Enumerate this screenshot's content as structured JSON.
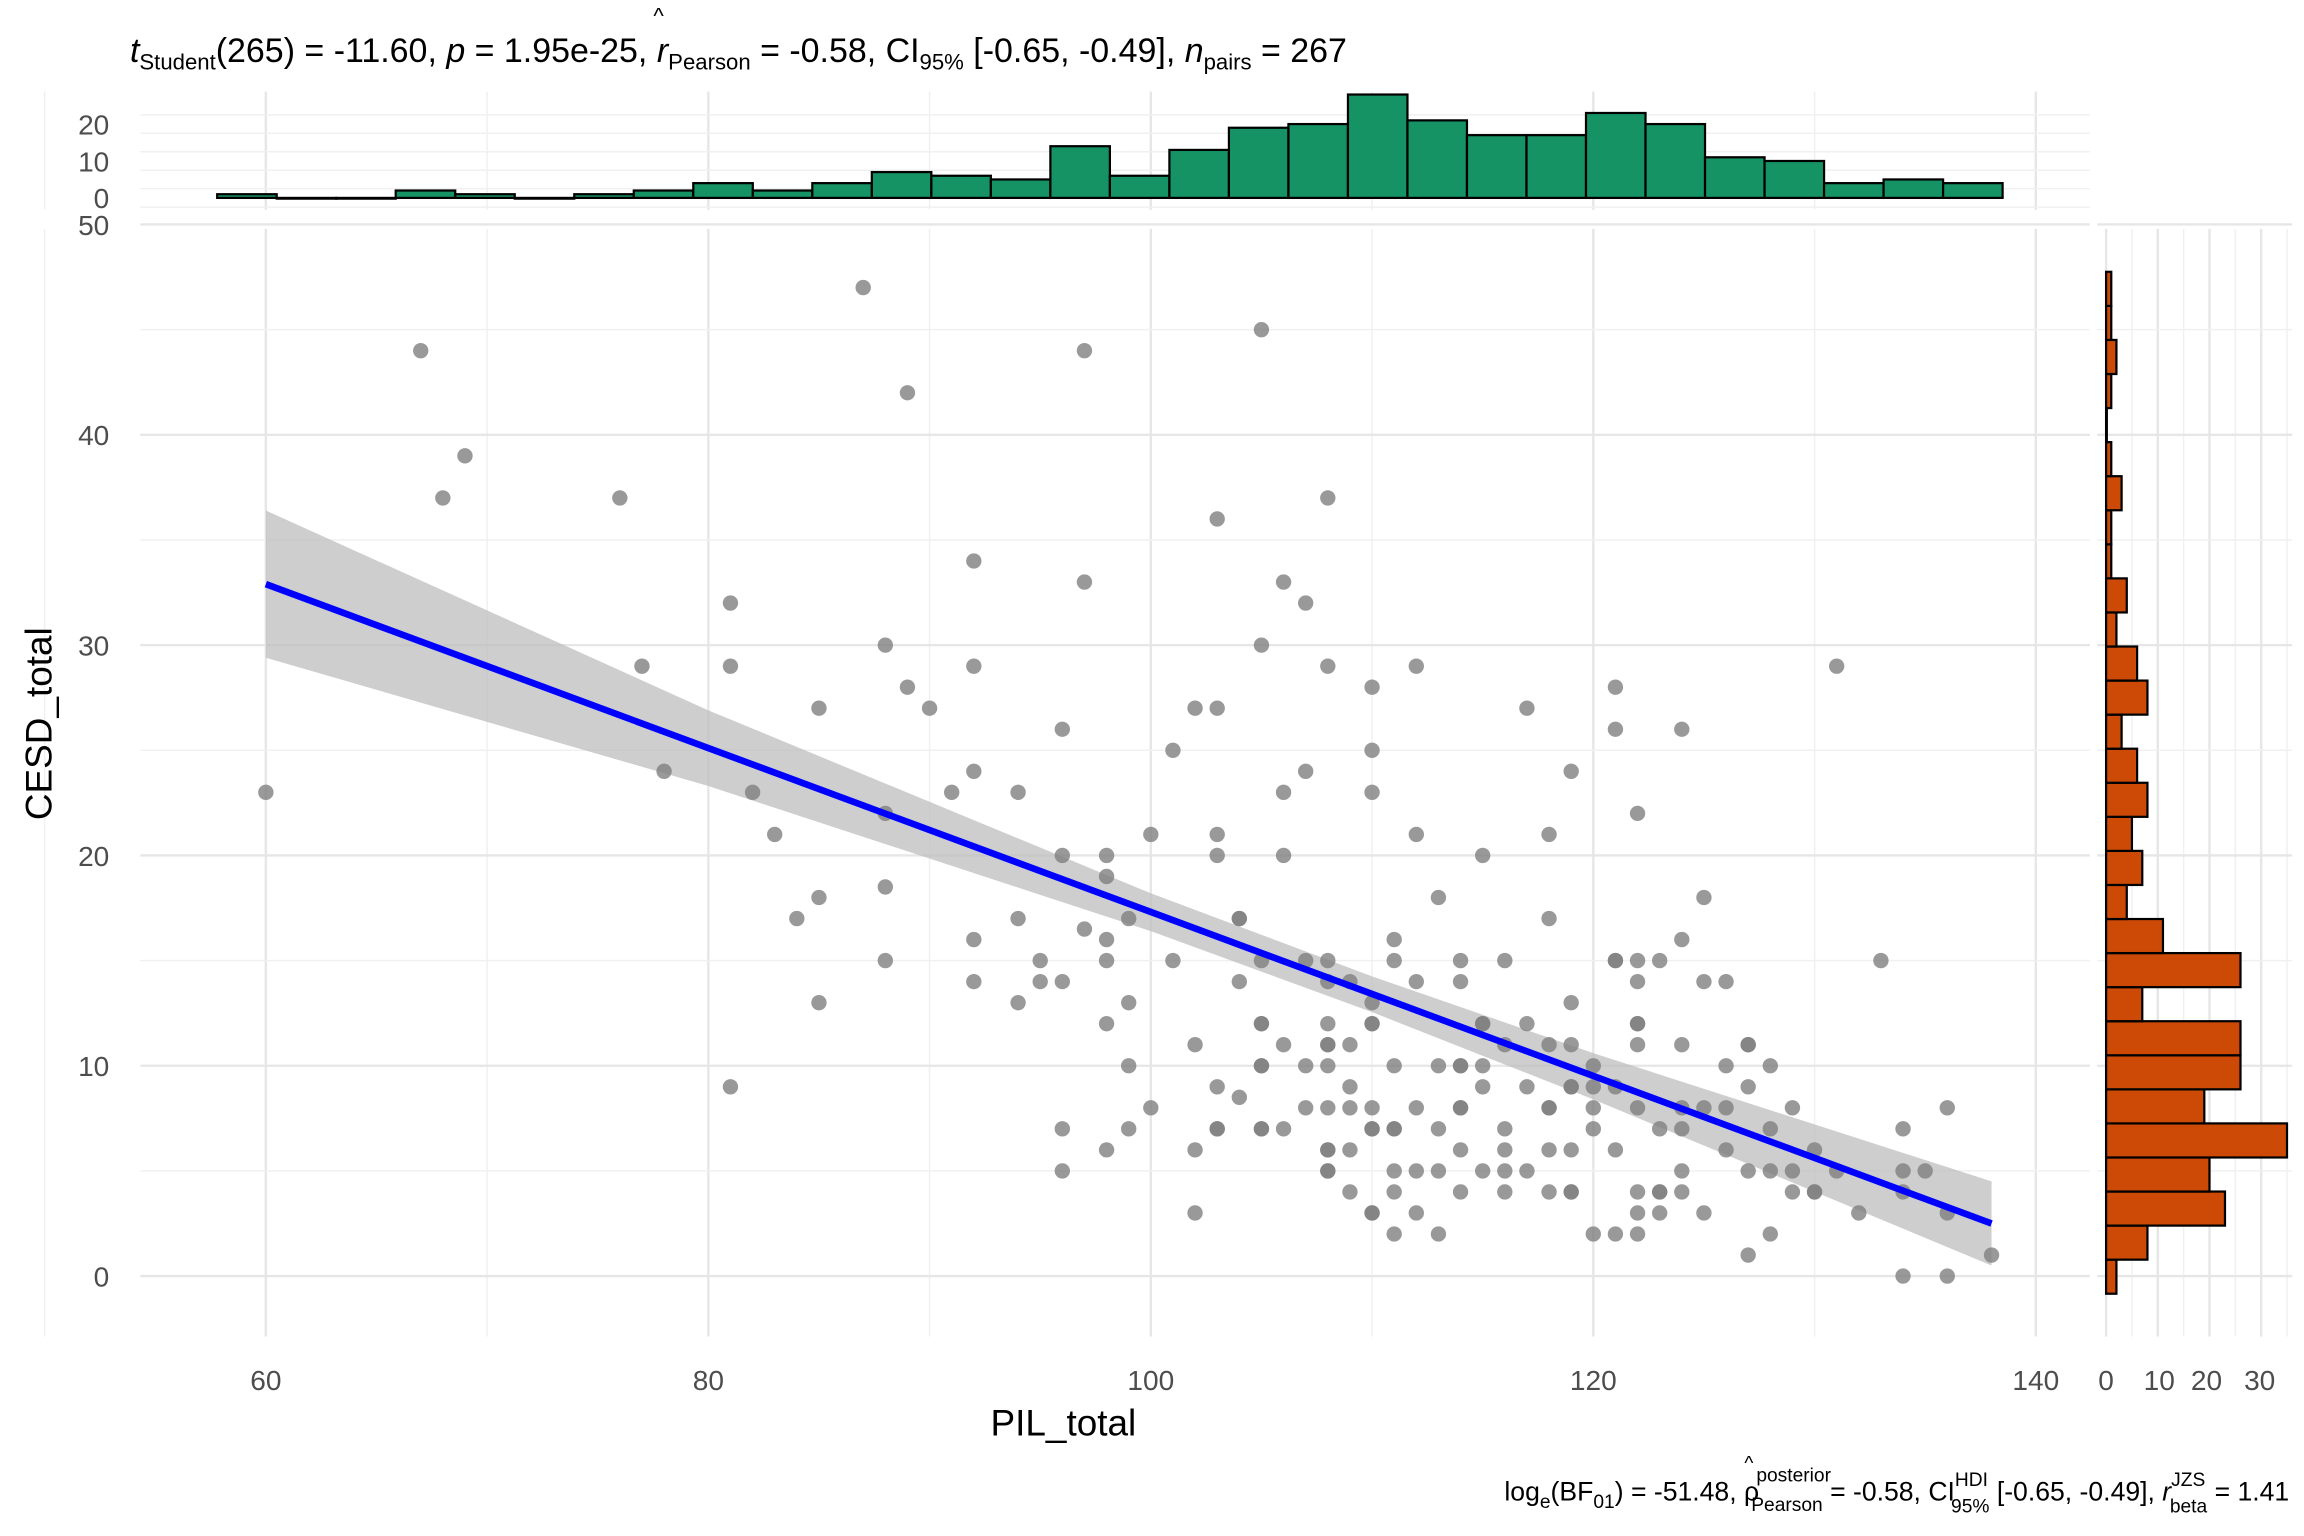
{
  "title": {
    "t": "t",
    "t_sub": "Student",
    "part1": "(265) = -11.60, ",
    "p": "p",
    "part2": " = 1.95e-25, ",
    "r": "r",
    "r_hat": "^",
    "r_sub": "Pearson",
    "part3": " = -0.58, CI",
    "ci_sub": "95%",
    "part4": " [-0.65, -0.49], ",
    "n": "n",
    "n_sub": "pairs",
    "part5": " = 267"
  },
  "caption": {
    "log": "log",
    "log_sub": "e",
    "bf_open": "(BF",
    "bf_sub": "01",
    "part1": ") = -51.48, ",
    "rho": "ρ",
    "rho_hat": "^",
    "rho_sup": "posterior",
    "rho_sub": "Pearson",
    "part2": " = -0.58, CI",
    "ci_sup": "HDI",
    "ci_sub": "95%",
    "part3": " [-0.65, -0.49], ",
    "r": "r",
    "r_sup": "JZS",
    "r_sub": "beta",
    "part4": " = 1.41"
  },
  "colors": {
    "points": "#7f7f7f",
    "line": "#0000ff",
    "band": "#bebebe",
    "top_hist": "#159364",
    "right_hist": "#cc4a06"
  },
  "chart_data": {
    "type": "scatter",
    "xlabel": "PIL_total",
    "ylabel": "CESD_total",
    "xlim": [
      55,
      140
    ],
    "ylim": [
      -3,
      50
    ],
    "xticks": [
      "60",
      "80",
      "100",
      "120",
      "140"
    ],
    "yticks": [
      "0",
      "10",
      "20",
      "30",
      "40",
      "50"
    ],
    "grid": true,
    "points": [
      [
        60,
        23
      ],
      [
        67,
        44
      ],
      [
        68,
        37
      ],
      [
        69,
        39
      ],
      [
        76,
        37
      ],
      [
        77,
        29
      ],
      [
        78,
        24
      ],
      [
        81,
        32
      ],
      [
        81,
        29
      ],
      [
        81,
        9
      ],
      [
        82,
        23
      ],
      [
        83,
        21
      ],
      [
        84,
        17
      ],
      [
        85,
        27
      ],
      [
        85,
        18
      ],
      [
        85,
        13
      ],
      [
        87,
        47
      ],
      [
        88,
        30
      ],
      [
        88,
        22
      ],
      [
        88,
        18.5
      ],
      [
        88,
        15
      ],
      [
        89,
        42
      ],
      [
        89,
        28
      ],
      [
        90,
        27
      ],
      [
        91,
        23
      ],
      [
        92,
        34
      ],
      [
        92,
        29
      ],
      [
        92,
        24
      ],
      [
        92,
        16
      ],
      [
        92,
        14
      ],
      [
        94,
        23
      ],
      [
        94,
        17
      ],
      [
        94,
        13
      ],
      [
        95,
        15
      ],
      [
        95,
        14
      ],
      [
        96,
        26
      ],
      [
        96,
        20
      ],
      [
        96,
        14
      ],
      [
        96,
        7
      ],
      [
        96,
        5
      ],
      [
        97,
        44
      ],
      [
        97,
        33
      ],
      [
        97,
        16.5
      ],
      [
        98,
        20
      ],
      [
        98,
        19
      ],
      [
        98,
        16
      ],
      [
        98,
        15
      ],
      [
        98,
        12
      ],
      [
        98,
        6
      ],
      [
        99,
        17
      ],
      [
        99,
        13
      ],
      [
        99,
        10
      ],
      [
        99,
        7
      ],
      [
        100,
        21
      ],
      [
        100,
        8
      ],
      [
        101,
        25
      ],
      [
        101,
        15
      ],
      [
        102,
        27
      ],
      [
        102,
        11
      ],
      [
        102,
        6
      ],
      [
        102,
        3
      ],
      [
        103,
        36
      ],
      [
        103,
        27
      ],
      [
        103,
        21
      ],
      [
        103,
        20
      ],
      [
        103,
        9
      ],
      [
        103,
        7
      ],
      [
        103,
        7
      ],
      [
        104,
        17
      ],
      [
        104,
        17
      ],
      [
        104,
        14
      ],
      [
        104,
        8.5
      ],
      [
        105,
        45
      ],
      [
        105,
        30
      ],
      [
        105,
        15
      ],
      [
        105,
        12
      ],
      [
        105,
        12
      ],
      [
        105,
        10
      ],
      [
        105,
        10
      ],
      [
        105,
        7
      ],
      [
        105,
        7
      ],
      [
        106,
        33
      ],
      [
        106,
        23
      ],
      [
        106,
        20
      ],
      [
        106,
        11
      ],
      [
        106,
        7
      ],
      [
        107,
        32
      ],
      [
        107,
        24
      ],
      [
        107,
        15
      ],
      [
        107,
        10
      ],
      [
        107,
        8
      ],
      [
        108,
        37
      ],
      [
        108,
        29
      ],
      [
        108,
        15
      ],
      [
        108,
        14
      ],
      [
        108,
        12
      ],
      [
        108,
        11
      ],
      [
        108,
        11
      ],
      [
        108,
        10
      ],
      [
        108,
        8
      ],
      [
        108,
        6
      ],
      [
        108,
        6
      ],
      [
        108,
        5
      ],
      [
        108,
        5
      ],
      [
        109,
        14
      ],
      [
        109,
        11
      ],
      [
        109,
        9
      ],
      [
        109,
        8
      ],
      [
        109,
        6
      ],
      [
        109,
        4
      ],
      [
        110,
        28
      ],
      [
        110,
        25
      ],
      [
        110,
        23
      ],
      [
        110,
        13
      ],
      [
        110,
        12
      ],
      [
        110,
        12
      ],
      [
        110,
        8
      ],
      [
        110,
        7
      ],
      [
        110,
        7
      ],
      [
        110,
        3
      ],
      [
        110,
        3
      ],
      [
        111,
        16
      ],
      [
        111,
        15
      ],
      [
        111,
        10
      ],
      [
        111,
        7
      ],
      [
        111,
        7
      ],
      [
        111,
        5
      ],
      [
        111,
        4
      ],
      [
        111,
        2
      ],
      [
        112,
        29
      ],
      [
        112,
        21
      ],
      [
        112,
        14
      ],
      [
        112,
        8
      ],
      [
        112,
        5
      ],
      [
        112,
        3
      ],
      [
        113,
        18
      ],
      [
        113,
        10
      ],
      [
        113,
        7
      ],
      [
        113,
        5
      ],
      [
        113,
        2
      ],
      [
        114,
        15
      ],
      [
        114,
        14
      ],
      [
        114,
        10
      ],
      [
        114,
        10
      ],
      [
        114,
        8
      ],
      [
        114,
        8
      ],
      [
        114,
        6
      ],
      [
        114,
        4
      ],
      [
        115,
        20
      ],
      [
        115,
        12
      ],
      [
        115,
        12
      ],
      [
        115,
        10
      ],
      [
        115,
        9
      ],
      [
        115,
        5
      ],
      [
        116,
        15
      ],
      [
        116,
        11
      ],
      [
        116,
        7
      ],
      [
        116,
        6
      ],
      [
        116,
        5
      ],
      [
        116,
        4
      ],
      [
        117,
        27
      ],
      [
        117,
        12
      ],
      [
        117,
        9
      ],
      [
        117,
        5
      ],
      [
        118,
        21
      ],
      [
        118,
        17
      ],
      [
        118,
        11
      ],
      [
        118,
        8
      ],
      [
        118,
        8
      ],
      [
        118,
        6
      ],
      [
        118,
        4
      ],
      [
        119,
        24
      ],
      [
        119,
        13
      ],
      [
        119,
        11
      ],
      [
        119,
        9
      ],
      [
        119,
        9
      ],
      [
        119,
        6
      ],
      [
        119,
        4
      ],
      [
        119,
        4
      ],
      [
        120,
        10
      ],
      [
        120,
        9
      ],
      [
        120,
        8
      ],
      [
        120,
        7
      ],
      [
        120,
        2
      ],
      [
        121,
        28
      ],
      [
        121,
        26
      ],
      [
        121,
        15
      ],
      [
        121,
        15
      ],
      [
        121,
        9
      ],
      [
        121,
        6
      ],
      [
        121,
        2
      ],
      [
        122,
        22
      ],
      [
        122,
        15
      ],
      [
        122,
        14
      ],
      [
        122,
        12
      ],
      [
        122,
        12
      ],
      [
        122,
        11
      ],
      [
        122,
        8
      ],
      [
        122,
        4
      ],
      [
        122,
        3
      ],
      [
        122,
        2
      ],
      [
        123,
        15
      ],
      [
        123,
        7
      ],
      [
        123,
        4
      ],
      [
        123,
        4
      ],
      [
        123,
        3
      ],
      [
        124,
        26
      ],
      [
        124,
        16
      ],
      [
        124,
        11
      ],
      [
        124,
        8
      ],
      [
        124,
        7
      ],
      [
        124,
        5
      ],
      [
        124,
        4
      ],
      [
        125,
        18
      ],
      [
        125,
        14
      ],
      [
        125,
        8
      ],
      [
        125,
        3
      ],
      [
        126,
        14
      ],
      [
        126,
        10
      ],
      [
        126,
        8
      ],
      [
        126,
        6
      ],
      [
        127,
        11
      ],
      [
        127,
        11
      ],
      [
        127,
        9
      ],
      [
        127,
        5
      ],
      [
        127,
        1
      ],
      [
        128,
        10
      ],
      [
        128,
        7
      ],
      [
        128,
        5
      ],
      [
        128,
        2
      ],
      [
        129,
        8
      ],
      [
        129,
        5
      ],
      [
        129,
        4
      ],
      [
        130,
        6
      ],
      [
        130,
        4
      ],
      [
        130,
        4
      ],
      [
        131,
        29
      ],
      [
        131,
        5
      ],
      [
        132,
        3
      ],
      [
        133,
        15
      ],
      [
        134,
        7
      ],
      [
        134,
        5
      ],
      [
        134,
        4
      ],
      [
        134,
        0
      ],
      [
        135,
        5
      ],
      [
        136,
        8
      ],
      [
        136,
        3
      ],
      [
        136,
        0
      ],
      [
        138,
        1
      ]
    ],
    "regression": {
      "x": [
        60,
        138
      ],
      "y": [
        32.9,
        2.5
      ]
    },
    "ci_band": {
      "x": [
        60,
        80,
        100,
        110,
        120,
        138
      ],
      "lower": [
        29.4,
        23.3,
        16.4,
        12.55,
        8.4,
        0.5
      ],
      "upper": [
        36.4,
        26.9,
        18.2,
        14.25,
        10.6,
        4.5
      ]
    },
    "x_histogram": {
      "range": [
        57.8,
        138.5
      ],
      "counts": [
        1,
        0,
        0,
        2,
        1,
        0,
        1,
        2,
        4,
        2,
        4,
        7,
        6,
        5,
        14,
        6,
        13,
        19,
        20,
        28,
        21,
        17,
        17,
        23,
        20,
        11,
        10,
        4,
        5,
        4
      ],
      "yticks": [
        "0",
        "10",
        "20"
      ]
    },
    "y_histogram": {
      "range": [
        -0.84,
        47.75
      ],
      "counts": [
        2,
        8,
        23,
        20,
        35,
        19,
        26,
        26,
        7,
        26,
        11,
        4,
        7,
        5,
        8,
        6,
        3,
        8,
        6,
        2,
        4,
        1,
        1,
        3,
        1,
        0,
        1,
        2,
        1,
        1
      ],
      "xticks": [
        "0",
        "10",
        "20",
        "30"
      ]
    }
  }
}
